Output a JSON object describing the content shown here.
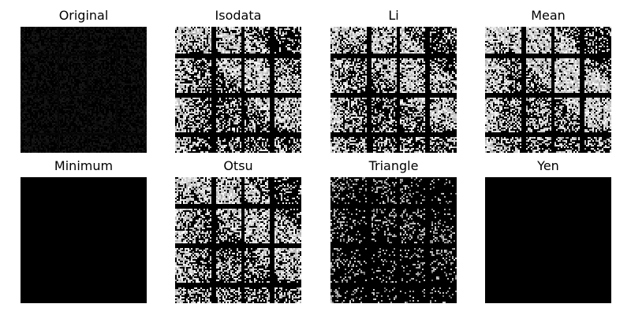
{
  "figure": {
    "panels": [
      {
        "title": "Original",
        "render": "original"
      },
      {
        "title": "Isodata",
        "render": "bright"
      },
      {
        "title": "Li",
        "render": "bright"
      },
      {
        "title": "Mean",
        "render": "brighter"
      },
      {
        "title": "Minimum",
        "render": "black"
      },
      {
        "title": "Otsu",
        "render": "bright"
      },
      {
        "title": "Triangle",
        "render": "sparse"
      },
      {
        "title": "Yen",
        "render": "black"
      }
    ]
  }
}
